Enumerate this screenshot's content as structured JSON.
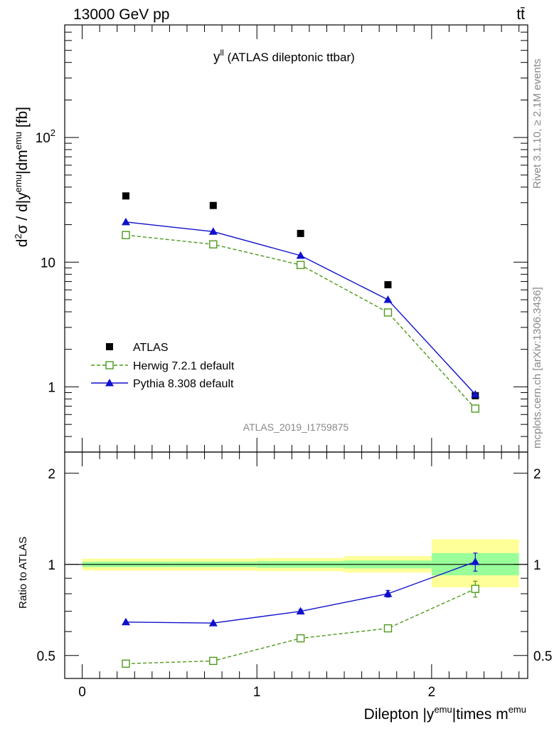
{
  "header": {
    "left": "13000 GeV pp",
    "right": "tt̄"
  },
  "side_text": {
    "upper": "Rivet 3.1.10, ≥ 2.1M events",
    "lower": "mcplots.cern.ch [arXiv:1306.3436]"
  },
  "watermark": "ATLAS_2019_I1759875",
  "colors": {
    "atlas": "#000000",
    "herwig": "#4d9a1c",
    "pythia": "#1010cc",
    "band_outer": "#ffff99",
    "band_inner": "#99ff99"
  },
  "chart_data": [
    {
      "type": "scatter",
      "title": "y^ll (ATLAS dileptonic ttbar)",
      "title_main": "y",
      "title_sup": "ll",
      "title_rest": " (ATLAS dileptonic ttbar)",
      "ylabel": "d²σ / d|y^emu|dm^emu [fb]",
      "yscale": "log",
      "ylim": [
        0.3,
        800
      ],
      "xlim": [
        -0.1,
        2.55
      ],
      "yticks": [
        {
          "label": "1",
          "value": 1
        },
        {
          "label": "10",
          "value": 10
        },
        {
          "label": "10²",
          "value": 100
        }
      ],
      "legend_position": "bottom-left",
      "series": [
        {
          "name": "ATLAS",
          "marker": "filled-square",
          "x": [
            0.25,
            0.75,
            1.25,
            1.75,
            2.25
          ],
          "y": [
            34,
            28.5,
            17,
            6.6,
            0.85
          ],
          "xerr": 0.25
        },
        {
          "name": "Herwig 7.2.1 default",
          "marker": "open-square",
          "line": "dashed",
          "x": [
            0.25,
            0.75,
            1.25,
            1.75,
            2.25
          ],
          "y": [
            16.5,
            13.9,
            9.5,
            3.95,
            0.67
          ]
        },
        {
          "name": "Pythia 8.308 default",
          "marker": "filled-triangle",
          "line": "solid",
          "x": [
            0.25,
            0.75,
            1.25,
            1.75,
            2.25
          ],
          "y": [
            21,
            17.6,
            11.3,
            5.0,
            0.87
          ]
        }
      ]
    },
    {
      "type": "scatter",
      "xlabel": "Dilepton |y^emu|times m^emu",
      "ylabel": "Ratio to ATLAS",
      "yscale": "log",
      "ylim": [
        0.42,
        2.35
      ],
      "xlim": [
        -0.1,
        2.55
      ],
      "xticks": [
        0,
        1,
        2
      ],
      "yticks": [
        {
          "label": "0.5",
          "value": 0.5
        },
        {
          "label": "1",
          "value": 1
        },
        {
          "label": "2",
          "value": 2
        }
      ],
      "bands": [
        {
          "x0": 0.0,
          "x1": 0.5,
          "outer": [
            0.955,
            1.045
          ],
          "inner": [
            0.98,
            1.02
          ]
        },
        {
          "x0": 0.5,
          "x1": 1.0,
          "outer": [
            0.955,
            1.045
          ],
          "inner": [
            0.98,
            1.02
          ]
        },
        {
          "x0": 1.0,
          "x1": 1.5,
          "outer": [
            0.95,
            1.05
          ],
          "inner": [
            0.975,
            1.025
          ]
        },
        {
          "x0": 1.5,
          "x1": 2.0,
          "outer": [
            0.94,
            1.065
          ],
          "inner": [
            0.97,
            1.03
          ]
        },
        {
          "x0": 2.0,
          "x1": 2.5,
          "outer": [
            0.84,
            1.21
          ],
          "inner": [
            0.92,
            1.09
          ]
        }
      ],
      "series": [
        {
          "name": "Herwig 7.2.1 default",
          "marker": "open-square",
          "line": "dashed",
          "x": [
            0.25,
            0.75,
            1.25,
            1.75,
            2.25
          ],
          "y": [
            0.47,
            0.48,
            0.57,
            0.615,
            0.83
          ],
          "yerr": [
            0,
            0,
            0.01,
            0.01,
            0.05
          ]
        },
        {
          "name": "Pythia 8.308 default",
          "marker": "filled-triangle",
          "line": "solid",
          "x": [
            0.25,
            0.75,
            1.25,
            1.75,
            2.25
          ],
          "y": [
            0.645,
            0.64,
            0.7,
            0.8,
            1.02
          ],
          "yerr": [
            0,
            0,
            0.01,
            0.02,
            0.07
          ]
        }
      ]
    }
  ]
}
